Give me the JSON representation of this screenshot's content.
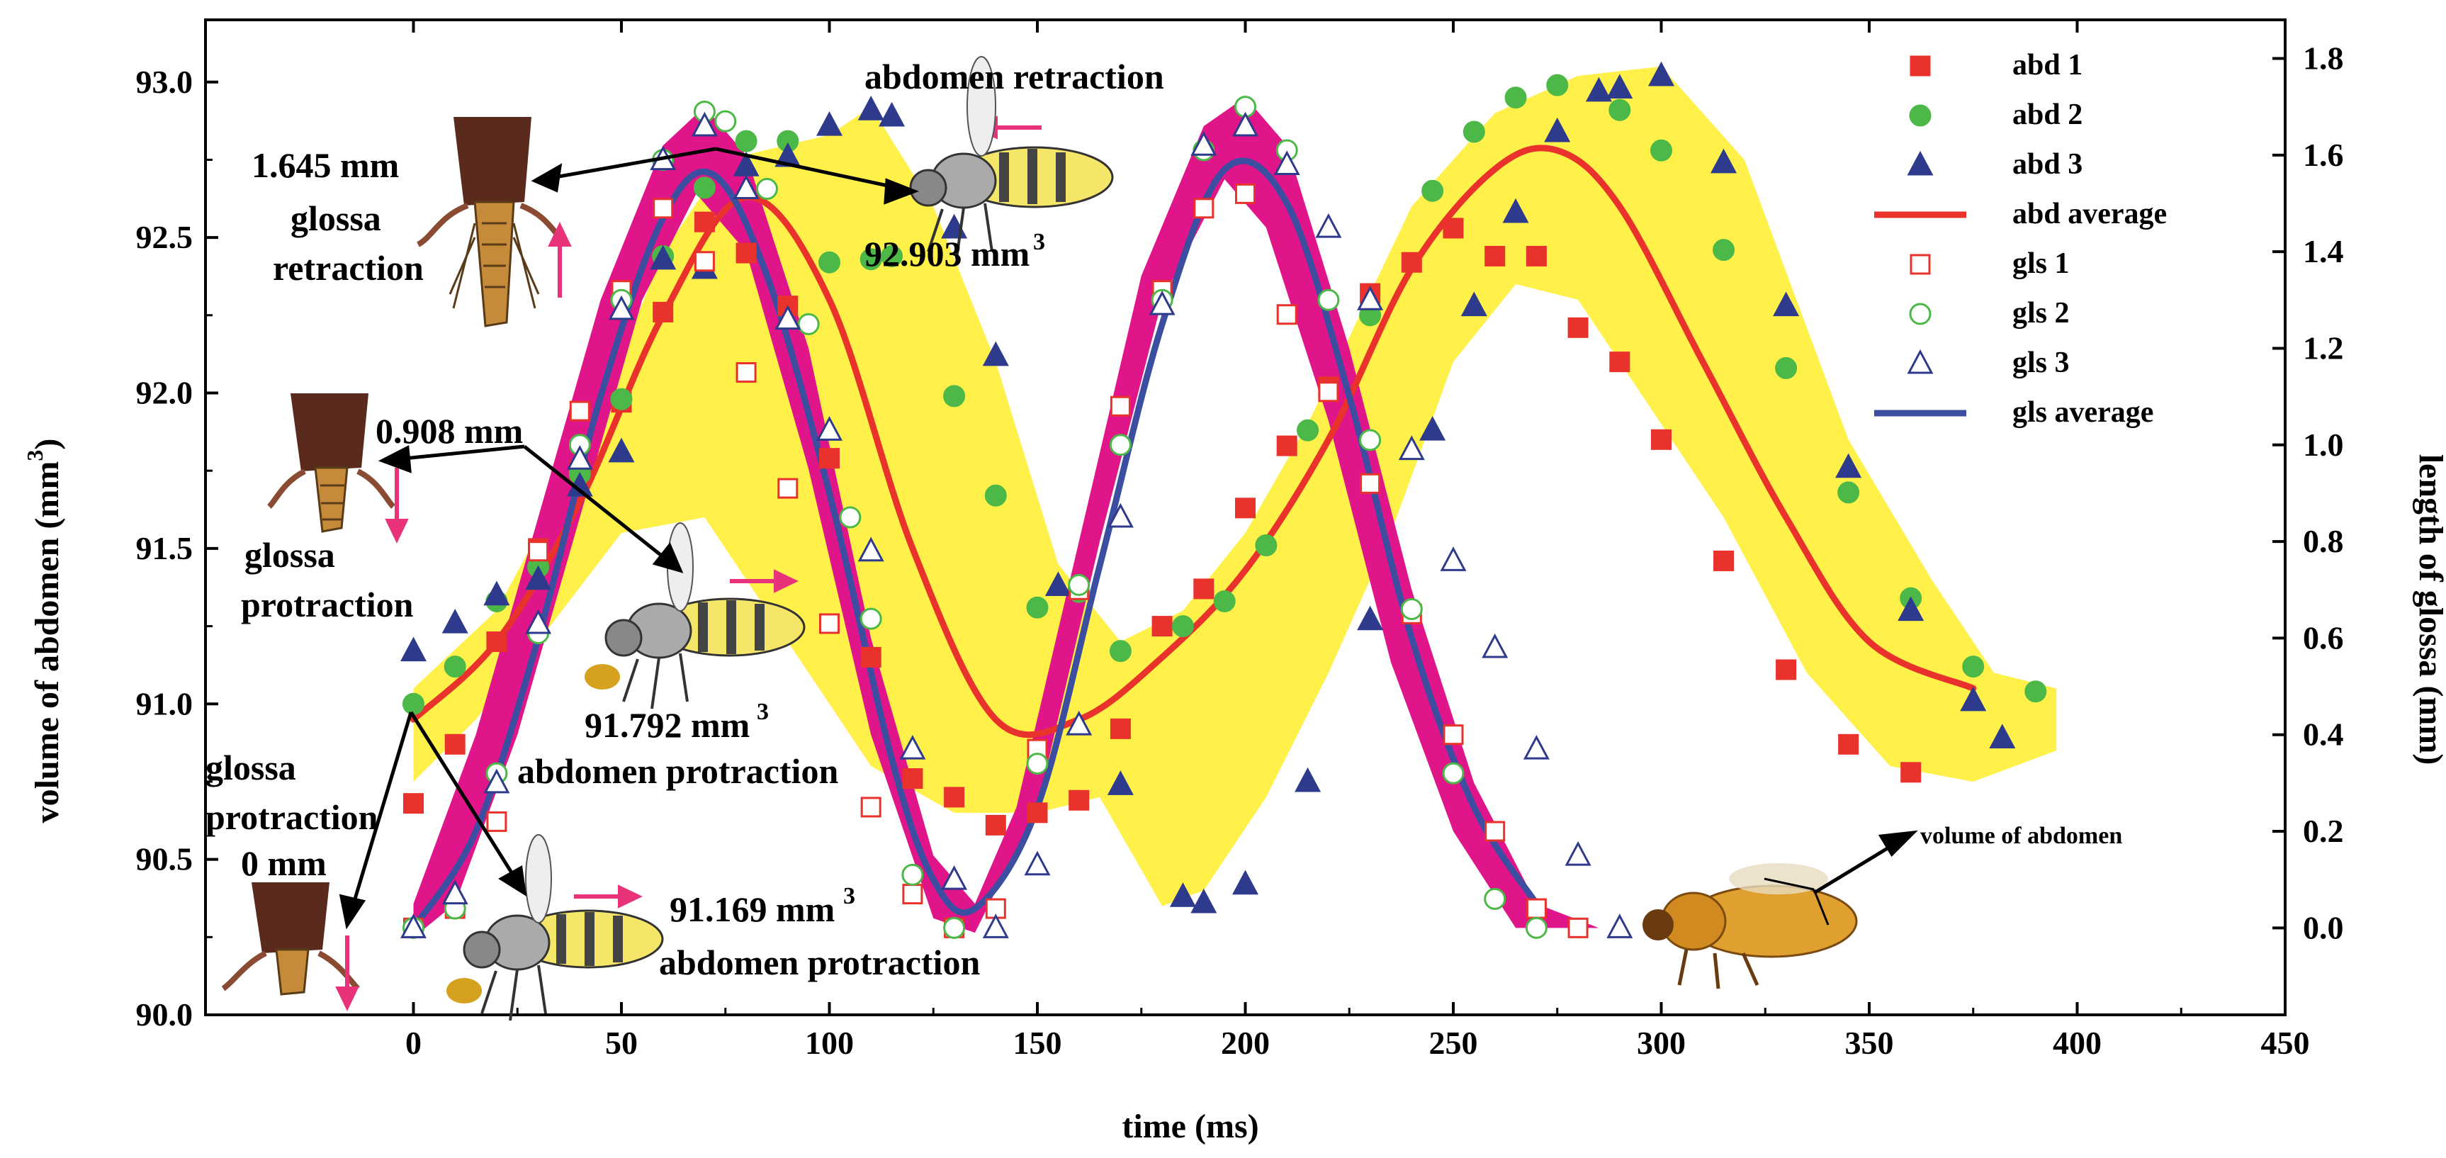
{
  "chart_data": {
    "type": "scatter",
    "xlabel": "time (ms)",
    "ylabel": "volume of abdomen (mm",
    "ylabel_sup": "3",
    "ylabel_close": ")",
    "y2label": "length of glossa (mm)",
    "xlim": [
      -50,
      450
    ],
    "ylim": [
      90.0,
      93.2
    ],
    "y2lim": [
      -0.18,
      1.88
    ],
    "xticks": [
      0,
      50,
      100,
      150,
      200,
      250,
      300,
      350,
      400,
      450
    ],
    "yticks": [
      90.0,
      90.5,
      91.0,
      91.5,
      92.0,
      92.5,
      93.0
    ],
    "yticklabels": [
      "90.0",
      "90.5",
      "91.0",
      "91.5",
      "92.0",
      "92.5",
      "93.0"
    ],
    "y2ticks": [
      0.0,
      0.2,
      0.4,
      0.6,
      0.8,
      1.0,
      1.2,
      1.4,
      1.6,
      1.8
    ],
    "y2ticklabels": [
      "0.0",
      "0.2",
      "0.4",
      "0.6",
      "0.8",
      "1.0",
      "1.2",
      "1.4",
      "1.6",
      "1.8"
    ],
    "colors": {
      "abd": "#e8322b",
      "abd2": "#4cb848",
      "abd3": "#2e3a8c",
      "abd_avg": "#e8322b",
      "gls_avg": "#3b4ea0",
      "yellow_band": "#fff04a",
      "magenta_band": "#e0158a",
      "arrow_pink": "#e8327a"
    },
    "series": [
      {
        "name": "abd 1",
        "axis": "left",
        "marker": "square-filled",
        "x": [
          0,
          10,
          20,
          30,
          40,
          50,
          60,
          70,
          80,
          90,
          100,
          110,
          120,
          130,
          140,
          150,
          160,
          170,
          180,
          190,
          200,
          210,
          220,
          230,
          240,
          250,
          260,
          270,
          280,
          290,
          300,
          315,
          330,
          345,
          360
        ],
        "y": [
          90.68,
          90.87,
          91.2,
          91.5,
          91.75,
          91.97,
          92.26,
          92.55,
          92.45,
          92.28,
          91.79,
          91.15,
          90.76,
          90.7,
          90.61,
          90.65,
          90.69,
          90.92,
          91.25,
          91.37,
          91.63,
          91.83,
          92.02,
          92.32,
          92.42,
          92.53,
          92.44,
          92.44,
          92.21,
          92.1,
          91.85,
          91.46,
          91.11,
          90.87,
          90.78
        ]
      },
      {
        "name": "abd 2",
        "axis": "left",
        "marker": "circle-filled",
        "x": [
          0,
          10,
          20,
          30,
          40,
          50,
          60,
          70,
          80,
          90,
          100,
          110,
          115,
          130,
          140,
          150,
          160,
          170,
          185,
          195,
          205,
          215,
          230,
          245,
          255,
          265,
          275,
          290,
          300,
          315,
          330,
          345,
          360,
          375,
          390
        ],
        "y": [
          91.0,
          91.12,
          91.33,
          91.44,
          91.74,
          91.98,
          92.44,
          92.66,
          92.81,
          92.81,
          92.42,
          92.43,
          92.44,
          91.99,
          91.67,
          91.31,
          91.36,
          91.17,
          91.25,
          91.33,
          91.51,
          91.88,
          92.25,
          92.65,
          92.84,
          92.95,
          92.99,
          92.91,
          92.78,
          92.46,
          92.08,
          91.68,
          91.34,
          91.12,
          91.04
        ]
      },
      {
        "name": "abd 3",
        "axis": "left",
        "marker": "triangle-filled",
        "x": [
          0,
          10,
          20,
          30,
          40,
          50,
          60,
          70,
          80,
          90,
          100,
          110,
          115,
          130,
          140,
          155,
          170,
          185,
          190,
          200,
          215,
          230,
          245,
          255,
          265,
          275,
          285,
          290,
          300,
          315,
          330,
          345,
          360,
          375,
          382
        ],
        "y": [
          91.17,
          91.26,
          91.35,
          91.4,
          91.7,
          91.81,
          92.43,
          92.4,
          92.73,
          92.76,
          92.86,
          92.91,
          92.89,
          92.53,
          92.12,
          91.38,
          90.74,
          90.38,
          90.36,
          90.42,
          90.75,
          91.27,
          91.88,
          92.28,
          92.58,
          92.84,
          92.97,
          92.98,
          93.02,
          92.74,
          92.28,
          91.76,
          91.3,
          91.01,
          90.89
        ]
      },
      {
        "name": "abd average",
        "axis": "left",
        "line": true,
        "x": [
          0,
          20,
          40,
          60,
          80,
          100,
          120,
          140,
          160,
          180,
          200,
          220,
          240,
          260,
          275,
          290,
          310,
          330,
          350,
          375
        ],
        "y": [
          90.95,
          91.2,
          91.65,
          92.25,
          92.63,
          92.3,
          91.5,
          90.95,
          90.95,
          91.15,
          91.43,
          91.85,
          92.4,
          92.72,
          92.78,
          92.6,
          92.1,
          91.6,
          91.2,
          91.05
        ]
      },
      {
        "name": "gls 1",
        "axis": "right",
        "marker": "square-open",
        "x": [
          0,
          10,
          20,
          30,
          40,
          50,
          60,
          70,
          80,
          90,
          100,
          110,
          120,
          130,
          140,
          150,
          160,
          170,
          180,
          190,
          200,
          210,
          220,
          230,
          240,
          250,
          260,
          270,
          280
        ],
        "y": [
          0.0,
          0.04,
          0.22,
          0.78,
          1.07,
          1.32,
          1.49,
          1.38,
          1.15,
          0.91,
          0.63,
          0.25,
          0.07,
          0.0,
          0.04,
          0.37,
          0.7,
          1.08,
          1.32,
          1.49,
          1.52,
          1.27,
          1.11,
          0.92,
          0.65,
          0.4,
          0.2,
          0.04,
          0.0
        ]
      },
      {
        "name": "gls 2",
        "axis": "right",
        "marker": "circle-open",
        "x": [
          0,
          10,
          20,
          30,
          40,
          50,
          60,
          70,
          75,
          85,
          95,
          105,
          110,
          120,
          130,
          150,
          160,
          170,
          180,
          190,
          200,
          210,
          220,
          230,
          240,
          250,
          260,
          270
        ],
        "y": [
          0.0,
          0.04,
          0.32,
          0.61,
          1.0,
          1.3,
          1.59,
          1.69,
          1.67,
          1.53,
          1.25,
          0.85,
          0.64,
          0.11,
          0.0,
          0.34,
          0.71,
          1.0,
          1.3,
          1.61,
          1.7,
          1.61,
          1.3,
          1.01,
          0.66,
          0.32,
          0.06,
          0.0
        ]
      },
      {
        "name": "gls 3",
        "axis": "right",
        "marker": "triangle-open",
        "x": [
          0,
          10,
          20,
          30,
          40,
          50,
          60,
          70,
          80,
          90,
          100,
          110,
          120,
          130,
          140,
          150,
          160,
          170,
          180,
          190,
          200,
          210,
          220,
          230,
          240,
          250,
          260,
          270,
          280,
          290
        ],
        "y": [
          0.0,
          0.07,
          0.3,
          0.63,
          0.97,
          1.28,
          1.59,
          1.66,
          1.53,
          1.26,
          1.03,
          0.78,
          0.37,
          0.1,
          0.0,
          0.13,
          0.42,
          0.85,
          1.29,
          1.62,
          1.66,
          1.58,
          1.45,
          1.3,
          0.99,
          0.76,
          0.58,
          0.37,
          0.15,
          0.0
        ]
      },
      {
        "name": "gls average",
        "axis": "right",
        "line": true,
        "x": [
          0,
          15,
          30,
          45,
          60,
          72,
          85,
          100,
          115,
          125,
          135,
          150,
          165,
          180,
          195,
          210,
          225,
          240,
          255,
          270
        ],
        "y": [
          0.0,
          0.2,
          0.6,
          1.1,
          1.47,
          1.56,
          1.35,
          0.9,
          0.35,
          0.1,
          0.04,
          0.25,
          0.75,
          1.25,
          1.57,
          1.5,
          1.1,
          0.6,
          0.25,
          0.05
        ]
      }
    ],
    "yellow_band": {
      "upper_x": [
        0,
        20,
        40,
        60,
        75,
        100,
        110,
        125,
        140,
        155,
        170,
        185,
        200,
        215,
        240,
        260,
        280,
        300,
        320,
        345,
        365,
        380,
        395
      ],
      "upper_y": [
        91.05,
        91.3,
        91.8,
        92.45,
        92.75,
        92.83,
        92.92,
        92.6,
        92.1,
        91.45,
        91.2,
        91.3,
        91.55,
        91.9,
        92.6,
        92.9,
        93.02,
        93.05,
        92.75,
        91.85,
        91.4,
        91.1,
        91.05
      ],
      "lower_x": [
        395,
        375,
        355,
        335,
        315,
        295,
        280,
        265,
        250,
        235,
        220,
        205,
        190,
        180,
        165,
        150,
        130,
        110,
        90,
        70,
        50,
        30,
        15,
        0
      ],
      "lower_y": [
        90.85,
        90.75,
        90.8,
        91.1,
        91.6,
        92.0,
        92.3,
        92.35,
        92.1,
        91.55,
        91.1,
        90.7,
        90.4,
        90.35,
        90.7,
        90.65,
        90.65,
        90.8,
        91.2,
        91.6,
        91.55,
        91.2,
        90.95,
        90.75
      ]
    },
    "magenta_band": {
      "upper_x": [
        0,
        15,
        30,
        45,
        60,
        70,
        80,
        95,
        110,
        125,
        135,
        145,
        160,
        175,
        190,
        200,
        210,
        225,
        240,
        255,
        270,
        285
      ],
      "upper_y": [
        0.05,
        0.4,
        0.85,
        1.3,
        1.62,
        1.7,
        1.6,
        1.2,
        0.6,
        0.15,
        0.05,
        0.25,
        0.8,
        1.35,
        1.66,
        1.72,
        1.62,
        1.2,
        0.7,
        0.3,
        0.05,
        0.0
      ],
      "lower_x": [
        285,
        265,
        250,
        235,
        220,
        205,
        195,
        180,
        165,
        150,
        135,
        125,
        110,
        95,
        80,
        68,
        55,
        40,
        25,
        10,
        0
      ],
      "lower_y": [
        0.0,
        0.0,
        0.2,
        0.55,
        1.05,
        1.45,
        1.55,
        1.3,
        0.8,
        0.25,
        -0.01,
        0.02,
        0.4,
        0.95,
        1.4,
        1.52,
        1.3,
        0.85,
        0.4,
        0.05,
        -0.02
      ]
    },
    "legend": {
      "position": "top-right",
      "entries": [
        "abd 1",
        "abd 2",
        "abd 3",
        "abd average",
        "gls 1",
        "gls 2",
        "gls 3",
        "gls average"
      ]
    },
    "annotations": {
      "abdomen_retraction": "abdomen retraction",
      "val_1645": "1.645 mm",
      "glossa": "glossa",
      "retraction": "retraction",
      "val_92903": "92.903 mm",
      "val_0908": "0.908 mm",
      "glossa2": "glossa",
      "protraction": "protraction",
      "val_91792": "91.792 mm",
      "abdomen_protraction": "abdomen protraction",
      "glossa3": "glossa",
      "protraction2": "protraction",
      "val_0mm": "0 mm",
      "val_91169": "91.169 mm",
      "abdomen_protraction2": "abdomen protraction",
      "volume_of_abdomen": "volume of abdomen",
      "cube_sup": "3"
    }
  }
}
